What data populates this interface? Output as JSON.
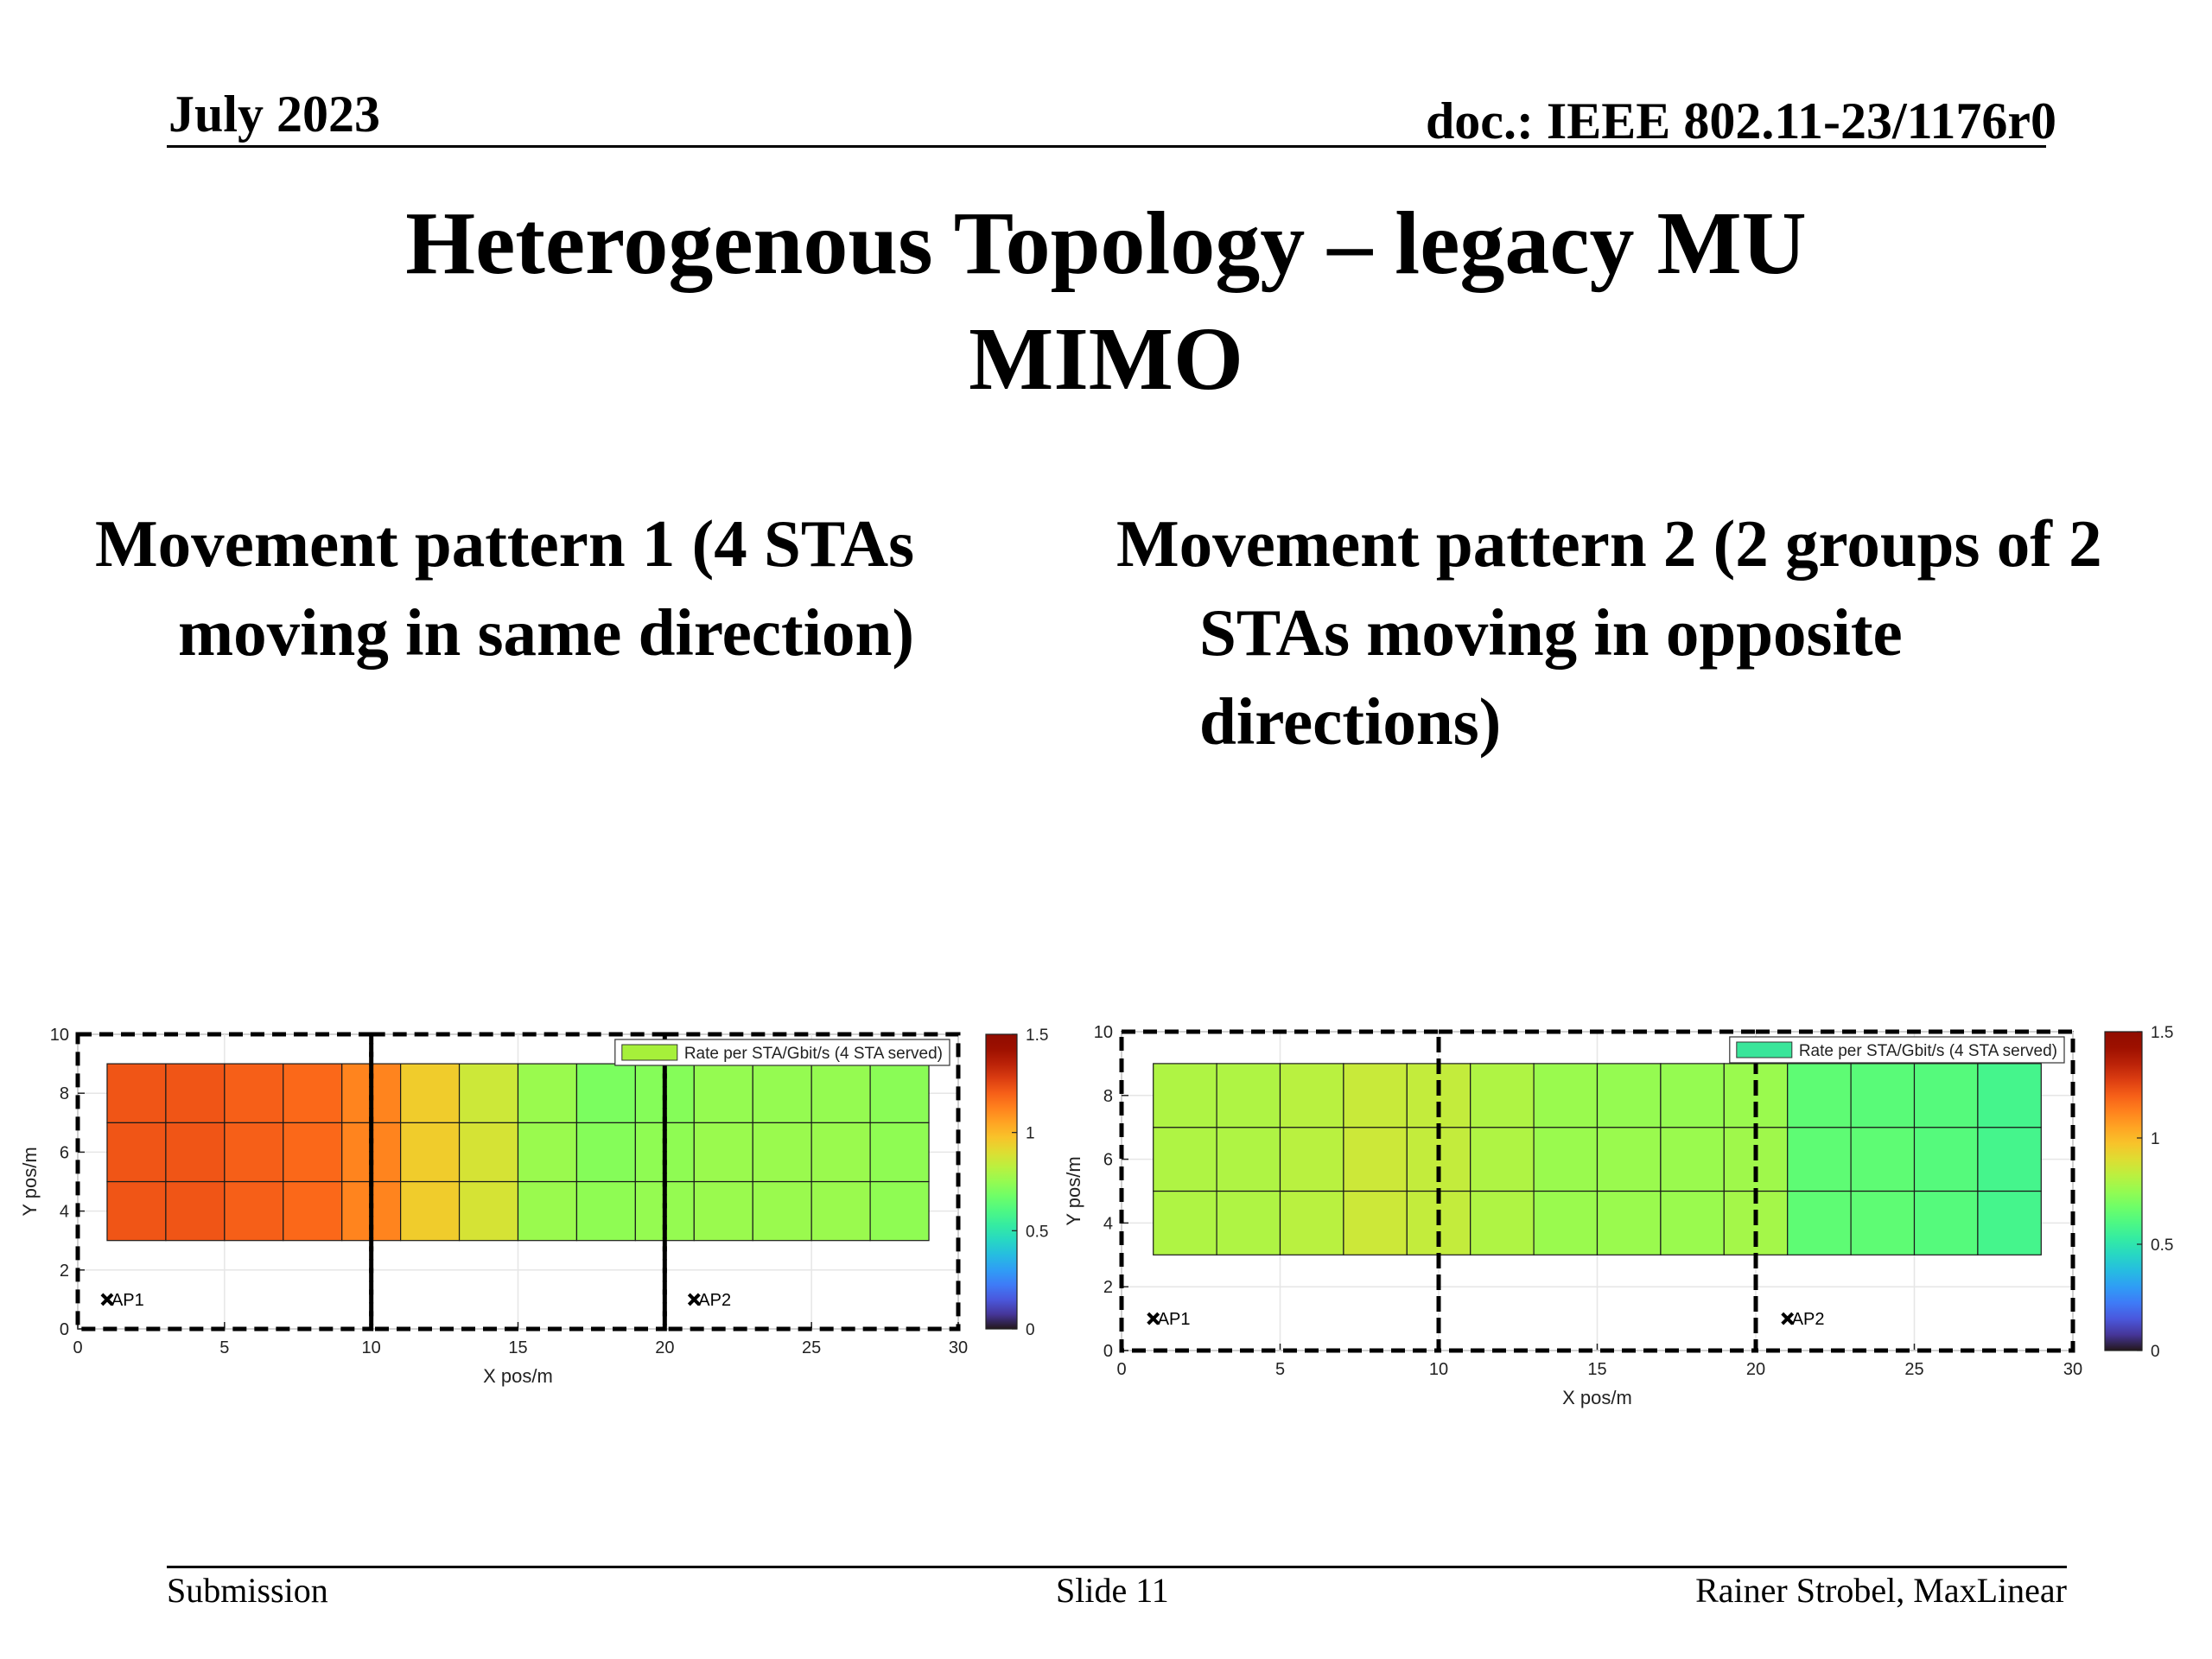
{
  "header": {
    "date": "July 2023",
    "doc": "doc.: IEEE 802.11-23/1176r0"
  },
  "title": "Heterogenous Topology – legacy MU MIMO",
  "subtitles": [
    "Movement pattern 1 (4 STAs moving in same direction)",
    "Movement pattern 2 (2 groups of 2 STAs moving in opposite directions)"
  ],
  "chart_data": [
    {
      "type": "heatmap",
      "xlabel": "X pos/m",
      "ylabel": "Y pos/m",
      "xlim": [
        0,
        30
      ],
      "xticks": [
        0,
        5,
        10,
        15,
        20,
        25,
        30
      ],
      "ylim": [
        0,
        10
      ],
      "yticks": [
        0,
        2,
        4,
        6,
        8,
        10
      ],
      "grid": true,
      "legend": {
        "label": "Rate per STA/Gbit/s (4 STA served)",
        "color": "#a6f03a",
        "position": "upper right"
      },
      "clim": [
        0,
        1.5
      ],
      "cticks": [
        0,
        0.5,
        1,
        1.5
      ],
      "x_edges": [
        1,
        3,
        5,
        7,
        9,
        11,
        13,
        15,
        17,
        19,
        21,
        23,
        25,
        27,
        29
      ],
      "y_edges": [
        3,
        5,
        7,
        9
      ],
      "values": [
        [
          1.22,
          1.22,
          1.2,
          1.18,
          1.12,
          0.95,
          0.88,
          0.76,
          0.74,
          0.75,
          0.76,
          0.76,
          0.76,
          0.74
        ],
        [
          1.22,
          1.22,
          1.2,
          1.18,
          1.12,
          0.95,
          0.88,
          0.76,
          0.72,
          0.74,
          0.76,
          0.76,
          0.76,
          0.74
        ],
        [
          1.22,
          1.22,
          1.2,
          1.18,
          1.12,
          0.95,
          0.86,
          0.76,
          0.7,
          0.72,
          0.75,
          0.75,
          0.75,
          0.73
        ]
      ],
      "zone_edges": [
        0,
        10,
        20,
        30
      ],
      "markers": [
        {
          "label": "AP1",
          "x": 1,
          "y": 1
        },
        {
          "label": "AP2",
          "x": 21,
          "y": 1
        }
      ]
    },
    {
      "type": "heatmap",
      "xlabel": "X pos/m",
      "ylabel": "Y pos/m",
      "xlim": [
        0,
        30
      ],
      "xticks": [
        0,
        5,
        10,
        15,
        20,
        25,
        30
      ],
      "ylim": [
        0,
        10
      ],
      "yticks": [
        0,
        2,
        4,
        6,
        8,
        10
      ],
      "grid": true,
      "legend": {
        "label": "Rate per STA/Gbit/s (4 STA served)",
        "color": "#3ae59a",
        "position": "upper right"
      },
      "clim": [
        0,
        1.5
      ],
      "cticks": [
        0,
        0.5,
        1,
        1.5
      ],
      "x_edges": [
        1,
        3,
        5,
        7,
        9,
        11,
        13,
        15,
        17,
        19,
        21,
        23,
        25,
        27,
        29
      ],
      "y_edges": [
        3,
        5,
        7,
        9
      ],
      "values": [
        [
          0.8,
          0.8,
          0.82,
          0.86,
          0.84,
          0.8,
          0.76,
          0.76,
          0.76,
          0.78,
          0.64,
          0.64,
          0.62,
          0.58
        ],
        [
          0.8,
          0.8,
          0.82,
          0.86,
          0.84,
          0.8,
          0.76,
          0.76,
          0.76,
          0.77,
          0.64,
          0.64,
          0.62,
          0.58
        ],
        [
          0.8,
          0.8,
          0.82,
          0.85,
          0.84,
          0.8,
          0.76,
          0.75,
          0.75,
          0.76,
          0.64,
          0.63,
          0.62,
          0.58
        ]
      ],
      "zone_edges": [
        0,
        10,
        20,
        30
      ],
      "markers": [
        {
          "label": "AP1",
          "x": 1,
          "y": 1
        },
        {
          "label": "AP2",
          "x": 21,
          "y": 1
        }
      ]
    }
  ],
  "footer": {
    "left": "Submission",
    "center": "Slide 11",
    "right": "Rainer Strobel, MaxLinear"
  }
}
